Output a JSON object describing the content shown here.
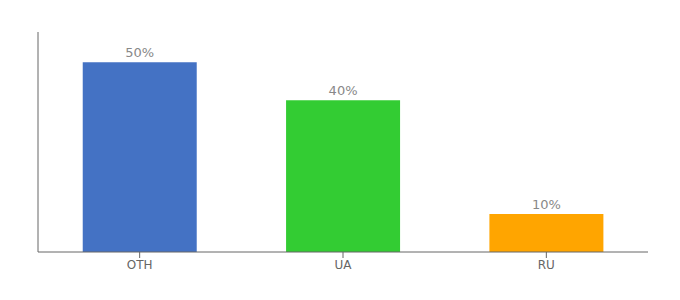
{
  "chart_data": {
    "type": "bar",
    "categories": [
      "OTH",
      "UA",
      "RU"
    ],
    "values": [
      50,
      40,
      10
    ],
    "value_labels": [
      "50%",
      "40%",
      "10%"
    ],
    "colors": [
      "#4472C4",
      "#33CC33",
      "#FFA500"
    ],
    "ylim": [
      0,
      58
    ],
    "data_labels": true,
    "tick_labels": "x",
    "grid": false
  }
}
